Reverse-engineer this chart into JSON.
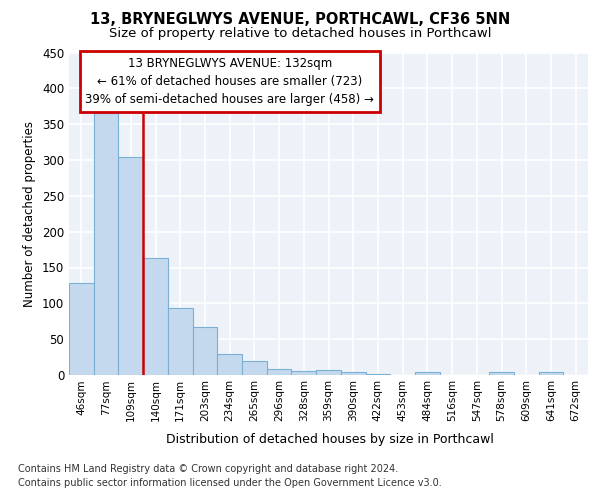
{
  "title1": "13, BRYNEGLWYS AVENUE, PORTHCAWL, CF36 5NN",
  "title2": "Size of property relative to detached houses in Porthcawl",
  "xlabel": "Distribution of detached houses by size in Porthcawl",
  "ylabel": "Number of detached properties",
  "categories": [
    "46sqm",
    "77sqm",
    "109sqm",
    "140sqm",
    "171sqm",
    "203sqm",
    "234sqm",
    "265sqm",
    "296sqm",
    "328sqm",
    "359sqm",
    "390sqm",
    "422sqm",
    "453sqm",
    "484sqm",
    "516sqm",
    "547sqm",
    "578sqm",
    "609sqm",
    "641sqm",
    "672sqm"
  ],
  "values": [
    128,
    365,
    304,
    163,
    93,
    67,
    30,
    20,
    9,
    6,
    7,
    4,
    1,
    0,
    4,
    0,
    0,
    4,
    0,
    4,
    0
  ],
  "bar_color": "#c5d9ee",
  "bar_edge_color": "#7bafd4",
  "vline_color": "#cc0000",
  "annotation_line1": "13 BRYNEGLWYS AVENUE: 132sqm",
  "annotation_line2": "← 61% of detached houses are smaller (723)",
  "annotation_line3": "39% of semi-detached houses are larger (458) →",
  "annotation_box_color": "#cc0000",
  "ylim": [
    0,
    450
  ],
  "yticks": [
    0,
    50,
    100,
    150,
    200,
    250,
    300,
    350,
    400,
    450
  ],
  "footer1": "Contains HM Land Registry data © Crown copyright and database right 2024.",
  "footer2": "Contains public sector information licensed under the Open Government Licence v3.0.",
  "background_color": "#edf2f9",
  "grid_color": "#ffffff"
}
